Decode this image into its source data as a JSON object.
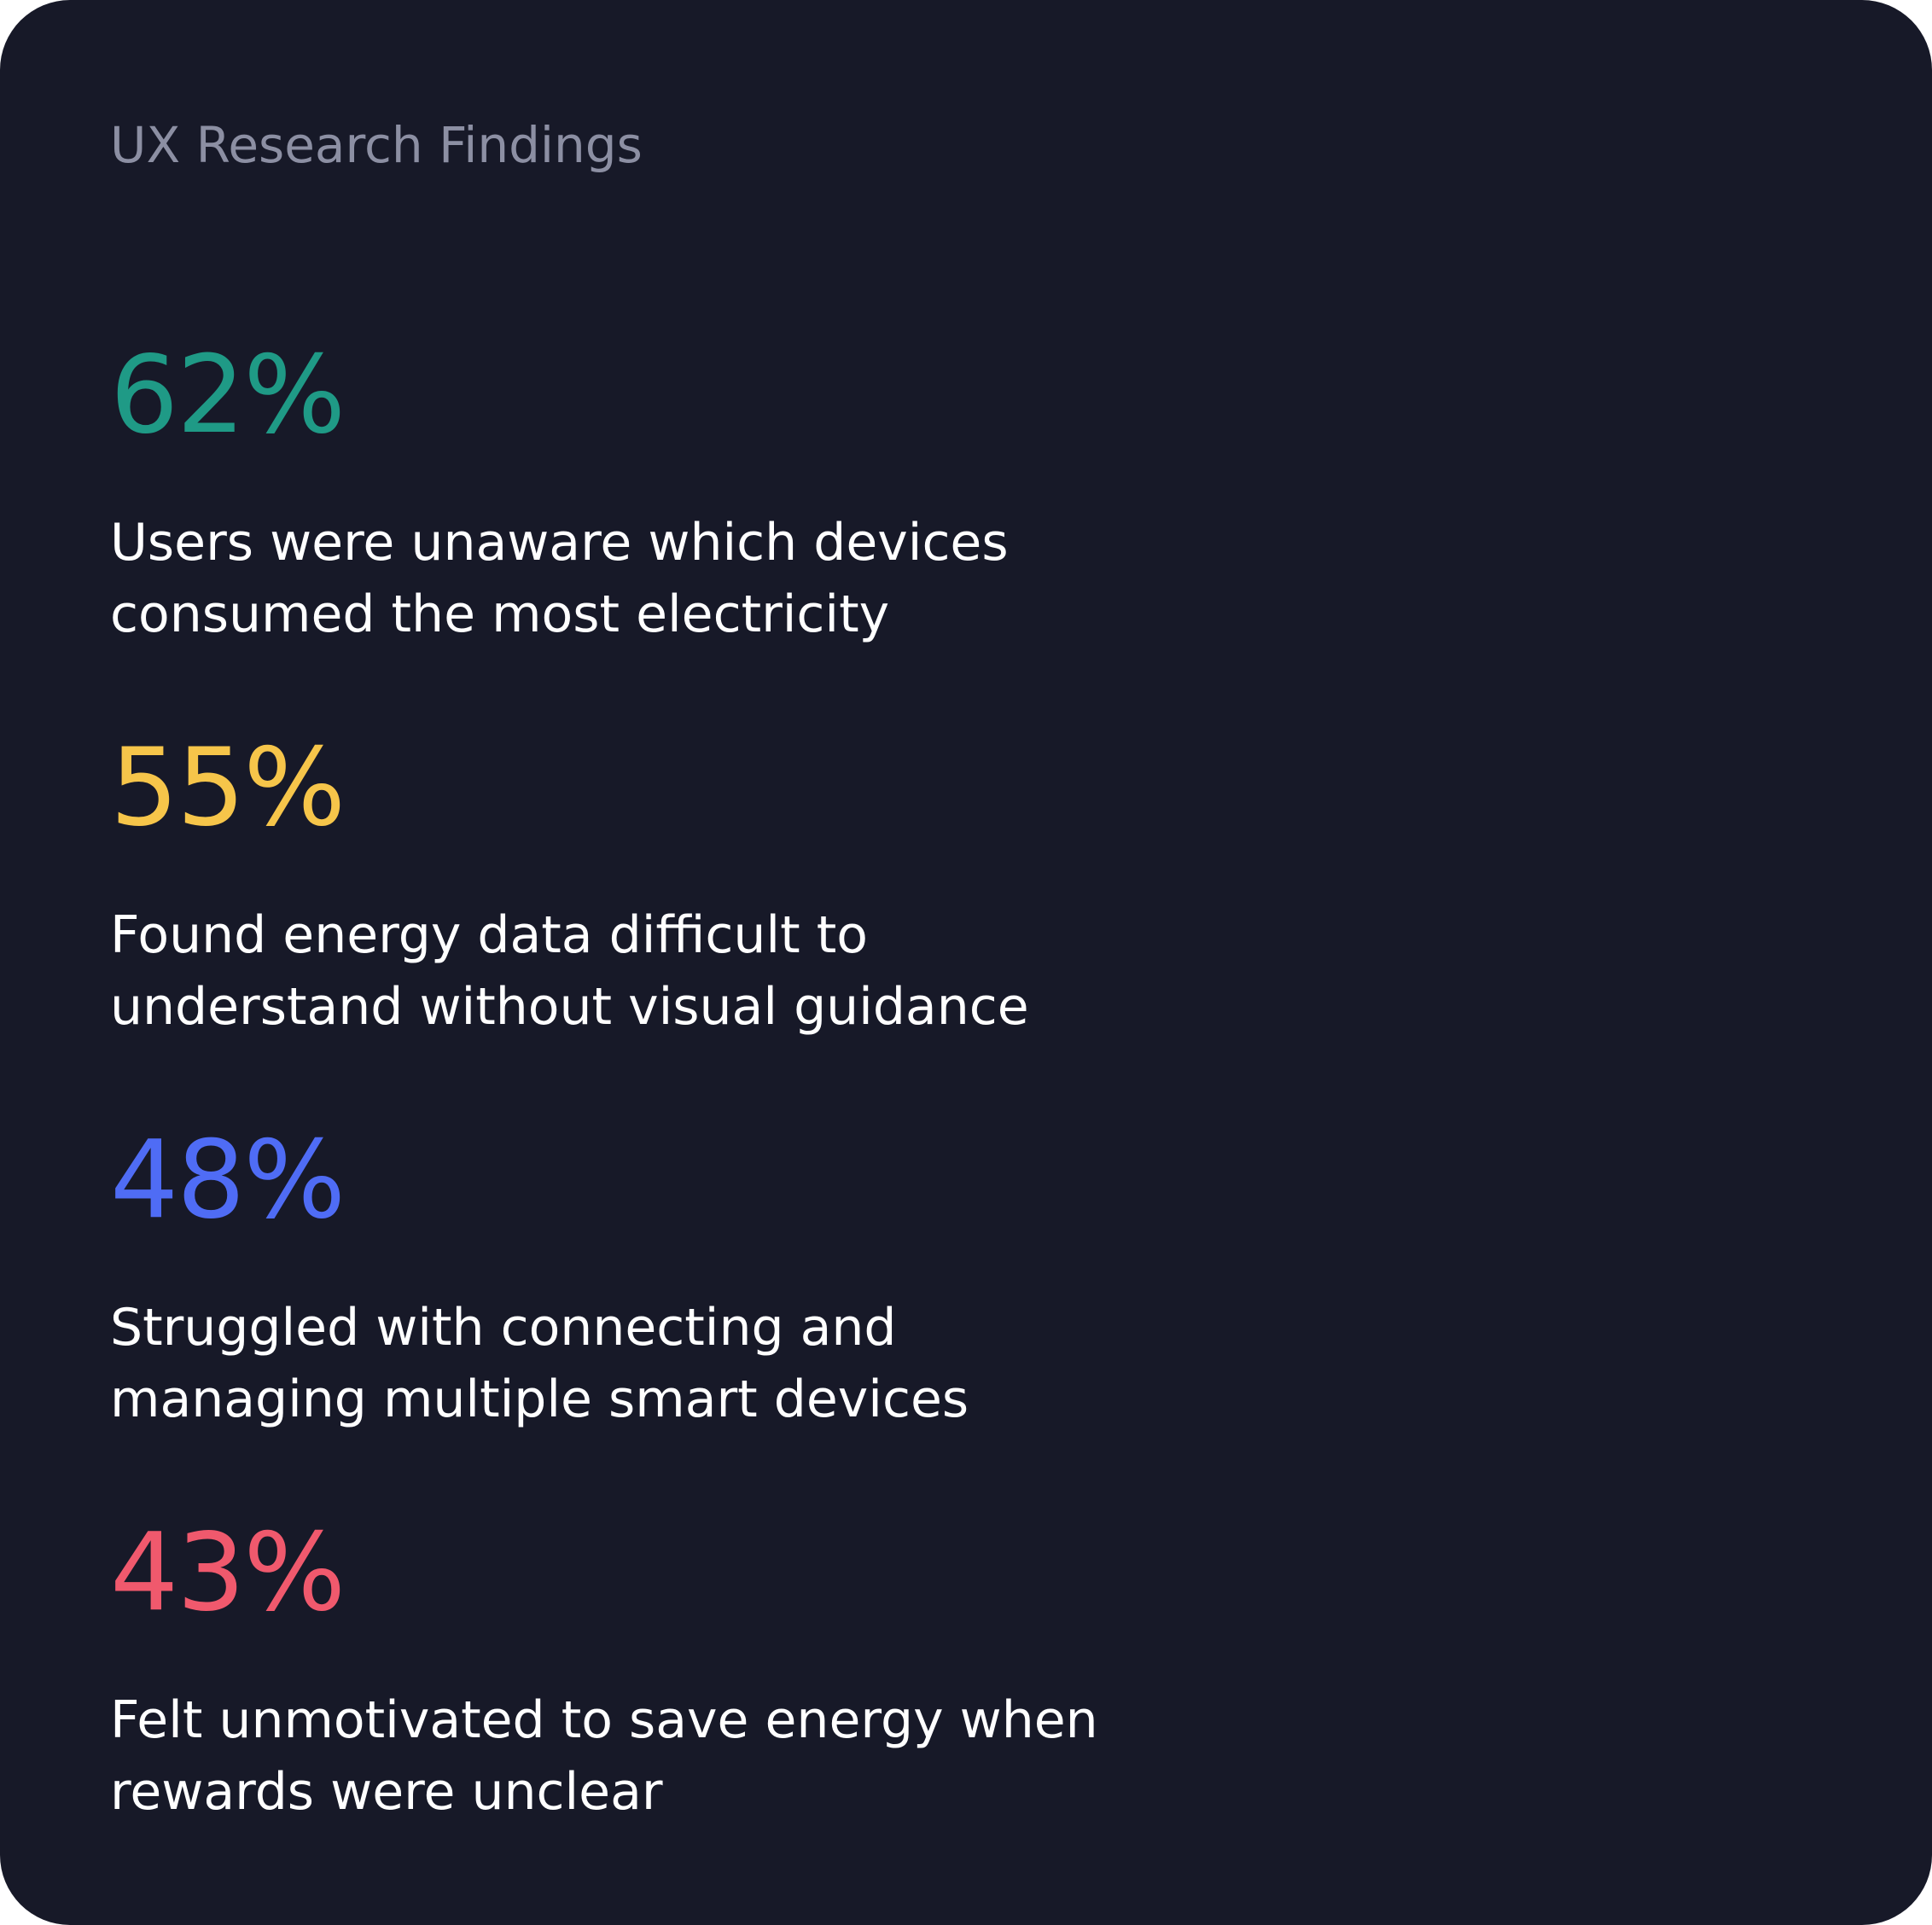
{
  "title": "UX Research Findings",
  "findings": [
    {
      "value": "62%",
      "line1": "Users were unaware which devices",
      "line2": "consumed the most electricity",
      "color": "#1f9a86"
    },
    {
      "value": "55%",
      "line1": "Found energy data difficult to",
      "line2": "understand without visual guidance",
      "color": "#f6c54a"
    },
    {
      "value": "48%",
      "line1": "Struggled with connecting and",
      "line2": "managing multiple smart devices",
      "color": "#4f6cf5"
    },
    {
      "value": "43%",
      "line1": "Felt unmotivated to save energy when",
      "line2": "rewards were unclear",
      "color": "#f0596d"
    }
  ]
}
